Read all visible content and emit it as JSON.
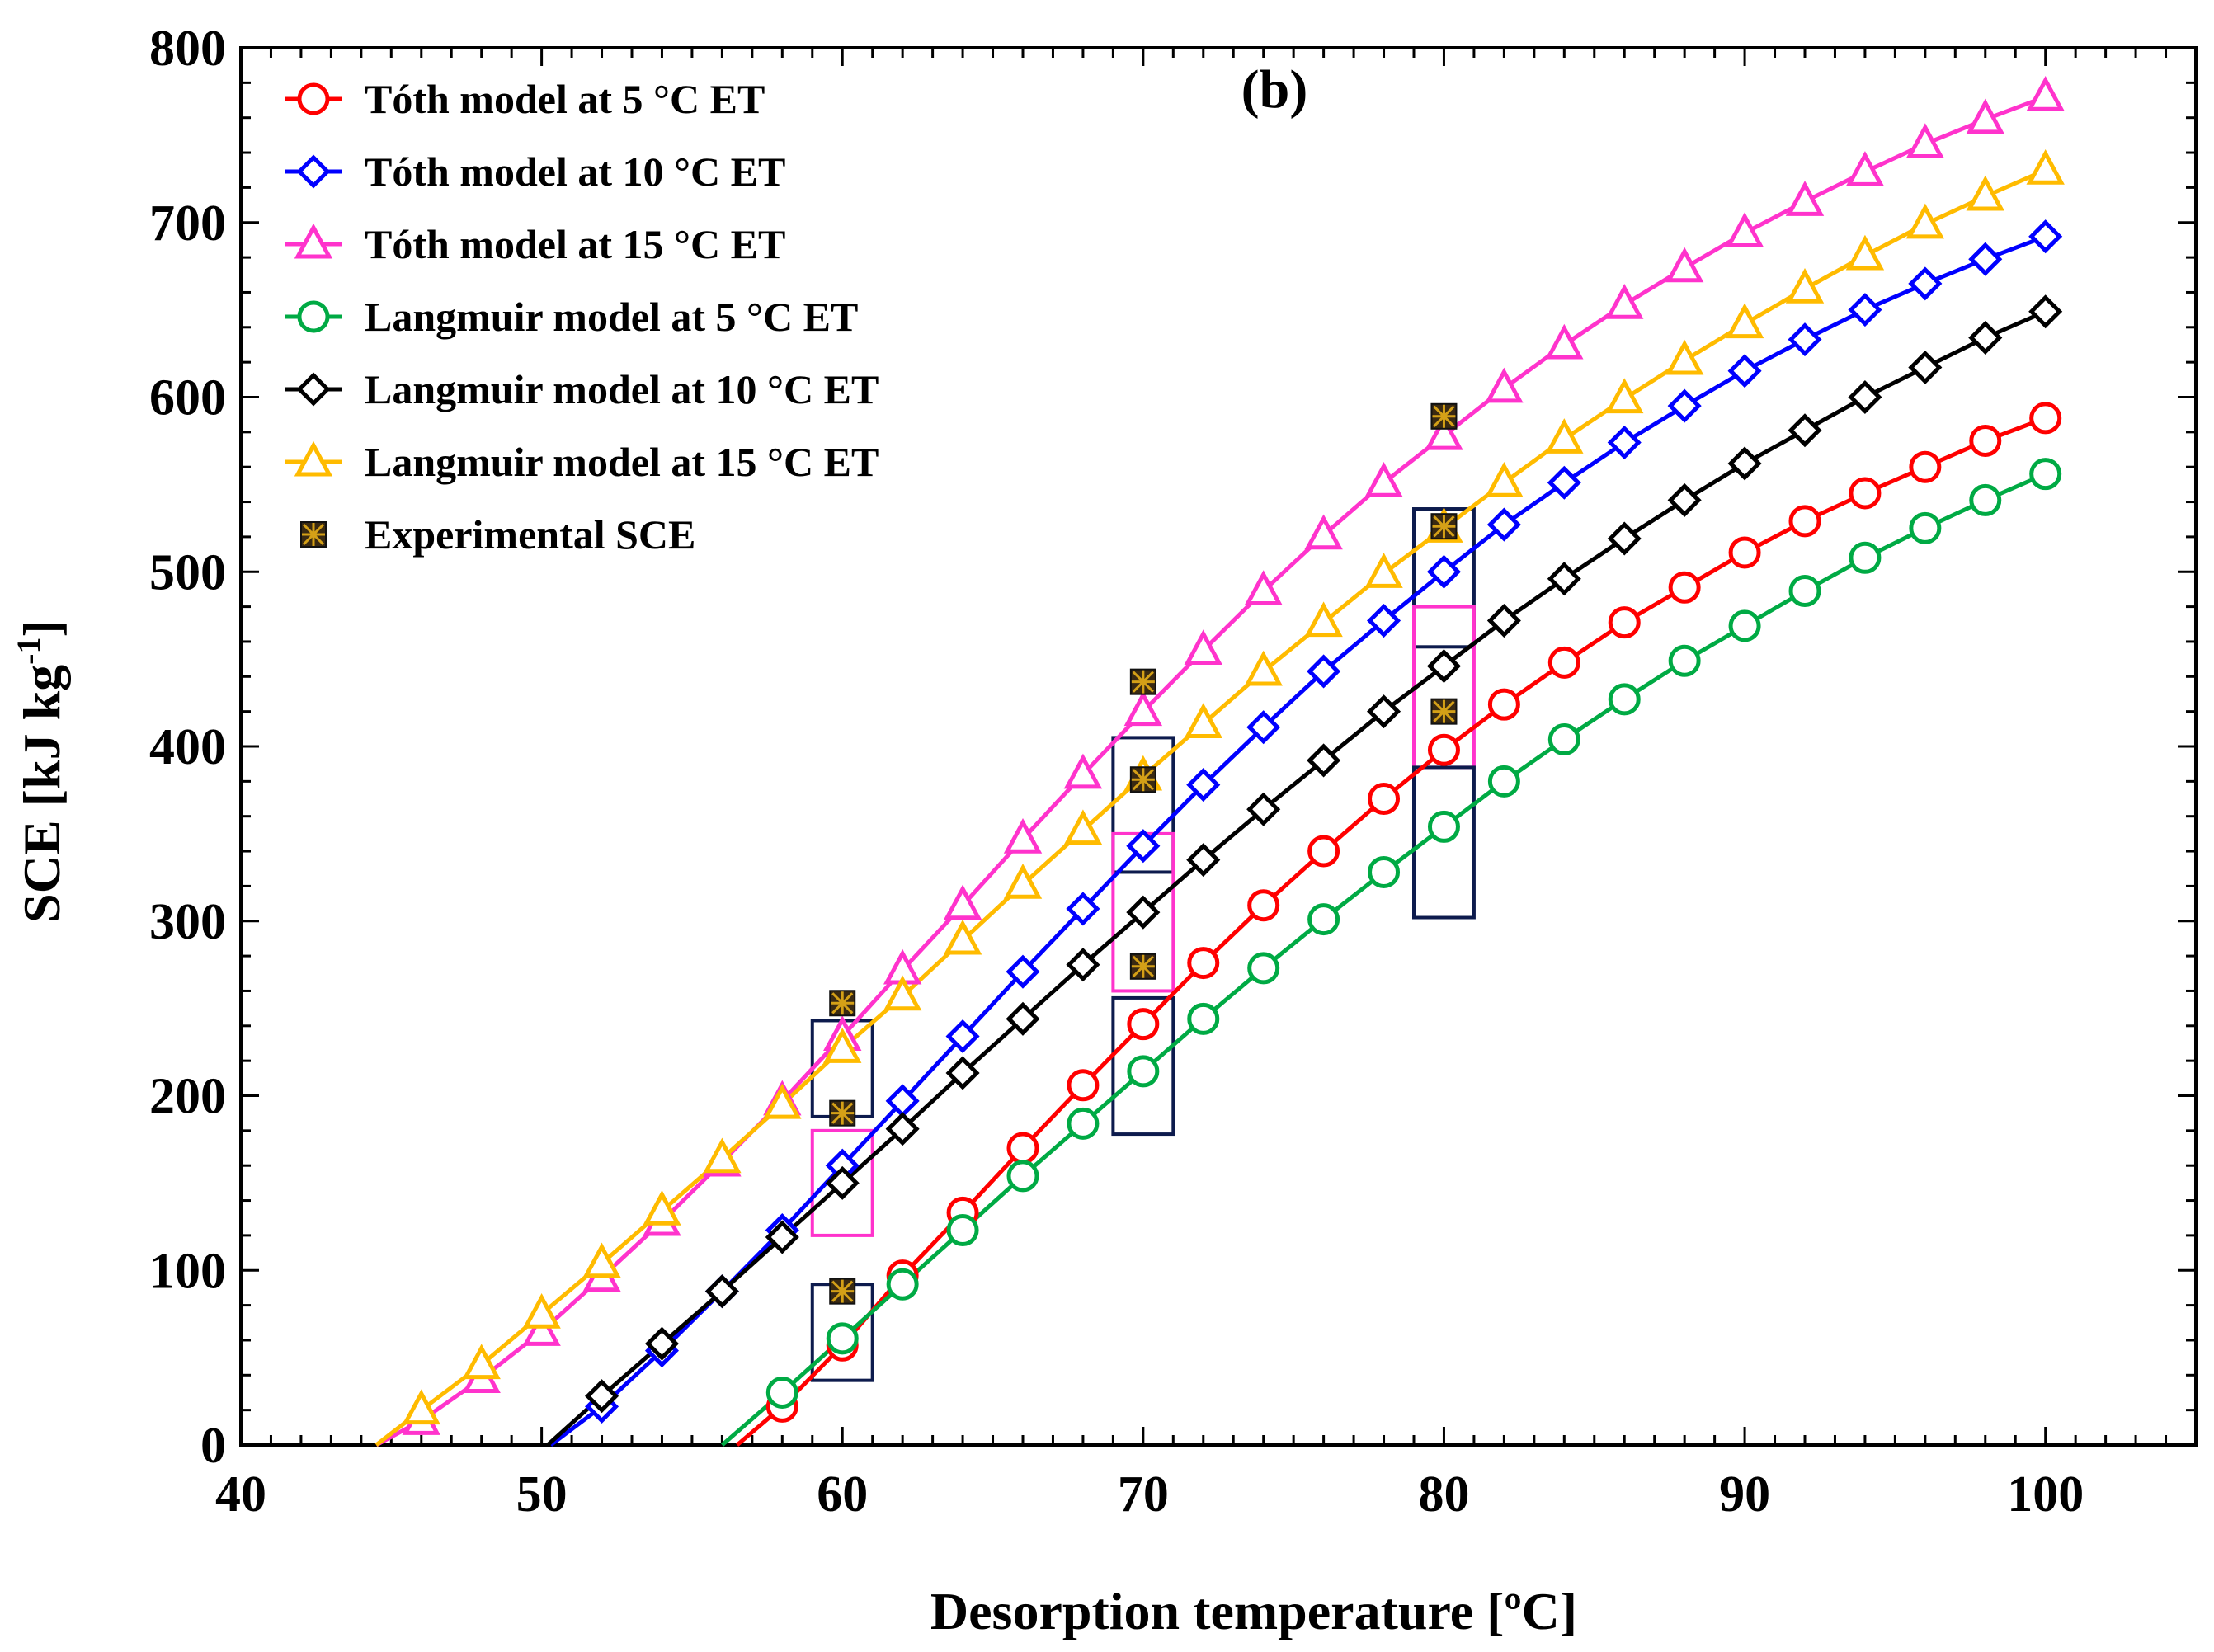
{
  "chart_data": {
    "type": "line",
    "panel_label": "(b)",
    "xlabel": "Desorption temperature [ºC]",
    "ylabel_main": "SCE [kJ kg",
    "ylabel_sup": "-1",
    "ylabel_end": "]",
    "xlim": [
      40,
      105
    ],
    "ylim": [
      0,
      800
    ],
    "x_ticks": [
      40,
      50,
      60,
      70,
      80,
      90,
      100
    ],
    "y_ticks": [
      0,
      100,
      200,
      300,
      400,
      500,
      600,
      700,
      800
    ],
    "grid": false,
    "legend_position": "top-left",
    "series": [
      {
        "name": "Tóth model at 5 °C ET",
        "color": "#ff0000",
        "marker": "circle",
        "x": [
          56.5,
          58,
          60,
          62,
          64,
          66,
          68,
          70,
          72,
          74,
          76,
          78,
          80,
          82,
          84,
          86,
          88,
          90,
          92,
          94,
          96,
          98,
          100
        ],
        "y": [
          0,
          22,
          57,
          97,
          133,
          170,
          206,
          241,
          276,
          309,
          340,
          370,
          398,
          424,
          448,
          471,
          491,
          511,
          529,
          545,
          560,
          575,
          588
        ]
      },
      {
        "name": "Tóth model at 10 °C ET",
        "color": "#0000ff",
        "marker": "diamond",
        "x": [
          50.3,
          52,
          54,
          56,
          58,
          60,
          62,
          64,
          66,
          68,
          70,
          72,
          74,
          76,
          78,
          80,
          82,
          84,
          86,
          88,
          90,
          92,
          94,
          96,
          98,
          100
        ],
        "y": [
          0,
          22,
          54,
          88,
          123,
          160,
          197,
          234,
          271,
          307,
          343,
          378,
          411,
          443,
          472,
          500,
          527,
          551,
          574,
          595,
          615,
          633,
          650,
          665,
          679,
          692
        ]
      },
      {
        "name": "Tóth model at 15 °C ET",
        "color": "#ff33cc",
        "marker": "triangle",
        "x": [
          44.5,
          46,
          48,
          50,
          52,
          54,
          56,
          58,
          60,
          62,
          64,
          66,
          68,
          70,
          72,
          74,
          76,
          78,
          80,
          82,
          84,
          86,
          88,
          90,
          92,
          94,
          96,
          98,
          100
        ],
        "y": [
          0,
          14,
          38,
          65,
          96,
          128,
          162,
          197,
          234,
          272,
          309,
          347,
          384,
          420,
          455,
          489,
          521,
          551,
          578,
          605,
          630,
          653,
          674,
          694,
          712,
          729,
          745,
          759,
          772
        ]
      },
      {
        "name": "Langmuir model at 5 °C ET",
        "color": "#00aa44",
        "marker": "circle",
        "x": [
          56,
          58,
          60,
          62,
          64,
          66,
          68,
          70,
          72,
          74,
          76,
          78,
          80,
          82,
          84,
          86,
          88,
          90,
          92,
          94,
          96,
          98,
          100
        ],
        "y": [
          0,
          30,
          61,
          92,
          123,
          154,
          184,
          214,
          244,
          273,
          301,
          328,
          354,
          380,
          404,
          427,
          449,
          469,
          489,
          508,
          525,
          541,
          556
        ]
      },
      {
        "name": "Langmuir model at 10 °C ET",
        "color": "#000000",
        "marker": "diamond",
        "x": [
          50.2,
          52,
          54,
          56,
          58,
          60,
          62,
          64,
          66,
          68,
          70,
          72,
          74,
          76,
          78,
          80,
          82,
          84,
          86,
          88,
          90,
          92,
          94,
          96,
          98,
          100
        ],
        "y": [
          0,
          28,
          58,
          88,
          119,
          150,
          181,
          213,
          244,
          275,
          305,
          335,
          364,
          392,
          420,
          446,
          472,
          496,
          519,
          541,
          562,
          581,
          600,
          617,
          634,
          649
        ]
      },
      {
        "name": "Langmuir model at 15 °C ET",
        "color": "#ffbb00",
        "marker": "triangle",
        "x": [
          44.5,
          46,
          48,
          50,
          52,
          54,
          56,
          58,
          60,
          62,
          64,
          66,
          68,
          70,
          72,
          74,
          76,
          78,
          80,
          82,
          84,
          86,
          88,
          90,
          92,
          94,
          96,
          98,
          100
        ],
        "y": [
          0,
          20,
          46,
          75,
          104,
          134,
          164,
          195,
          227,
          257,
          289,
          321,
          352,
          383,
          413,
          443,
          471,
          499,
          525,
          551,
          576,
          599,
          621,
          642,
          662,
          681,
          699,
          715,
          730
        ]
      },
      {
        "name": "Experimental SCE",
        "color": "#111111",
        "marker": "x-square",
        "line": false,
        "x": [
          60,
          60,
          60,
          70,
          70,
          70,
          80,
          80,
          80
        ],
        "y": [
          253,
          190,
          88,
          437,
          381,
          274,
          589,
          526,
          420
        ]
      }
    ],
    "error_boxes": [
      {
        "x": 60,
        "y_low": 188,
        "y_high": 243,
        "color": "#0d1b4d"
      },
      {
        "x": 60,
        "y_low": 120,
        "y_high": 180,
        "color": "#ff33cc"
      },
      {
        "x": 60,
        "y_low": 37,
        "y_high": 92,
        "color": "#0d1b4d"
      },
      {
        "x": 70,
        "y_low": 328,
        "y_high": 405,
        "color": "#0d1b4d"
      },
      {
        "x": 70,
        "y_low": 260,
        "y_high": 350,
        "color": "#ff33cc"
      },
      {
        "x": 70,
        "y_low": 178,
        "y_high": 256,
        "color": "#0d1b4d"
      },
      {
        "x": 80,
        "y_low": 457,
        "y_high": 536,
        "color": "#0d1b4d"
      },
      {
        "x": 80,
        "y_low": 388,
        "y_high": 480,
        "color": "#ff33cc"
      },
      {
        "x": 80,
        "y_low": 302,
        "y_high": 388,
        "color": "#0d1b4d"
      }
    ]
  }
}
